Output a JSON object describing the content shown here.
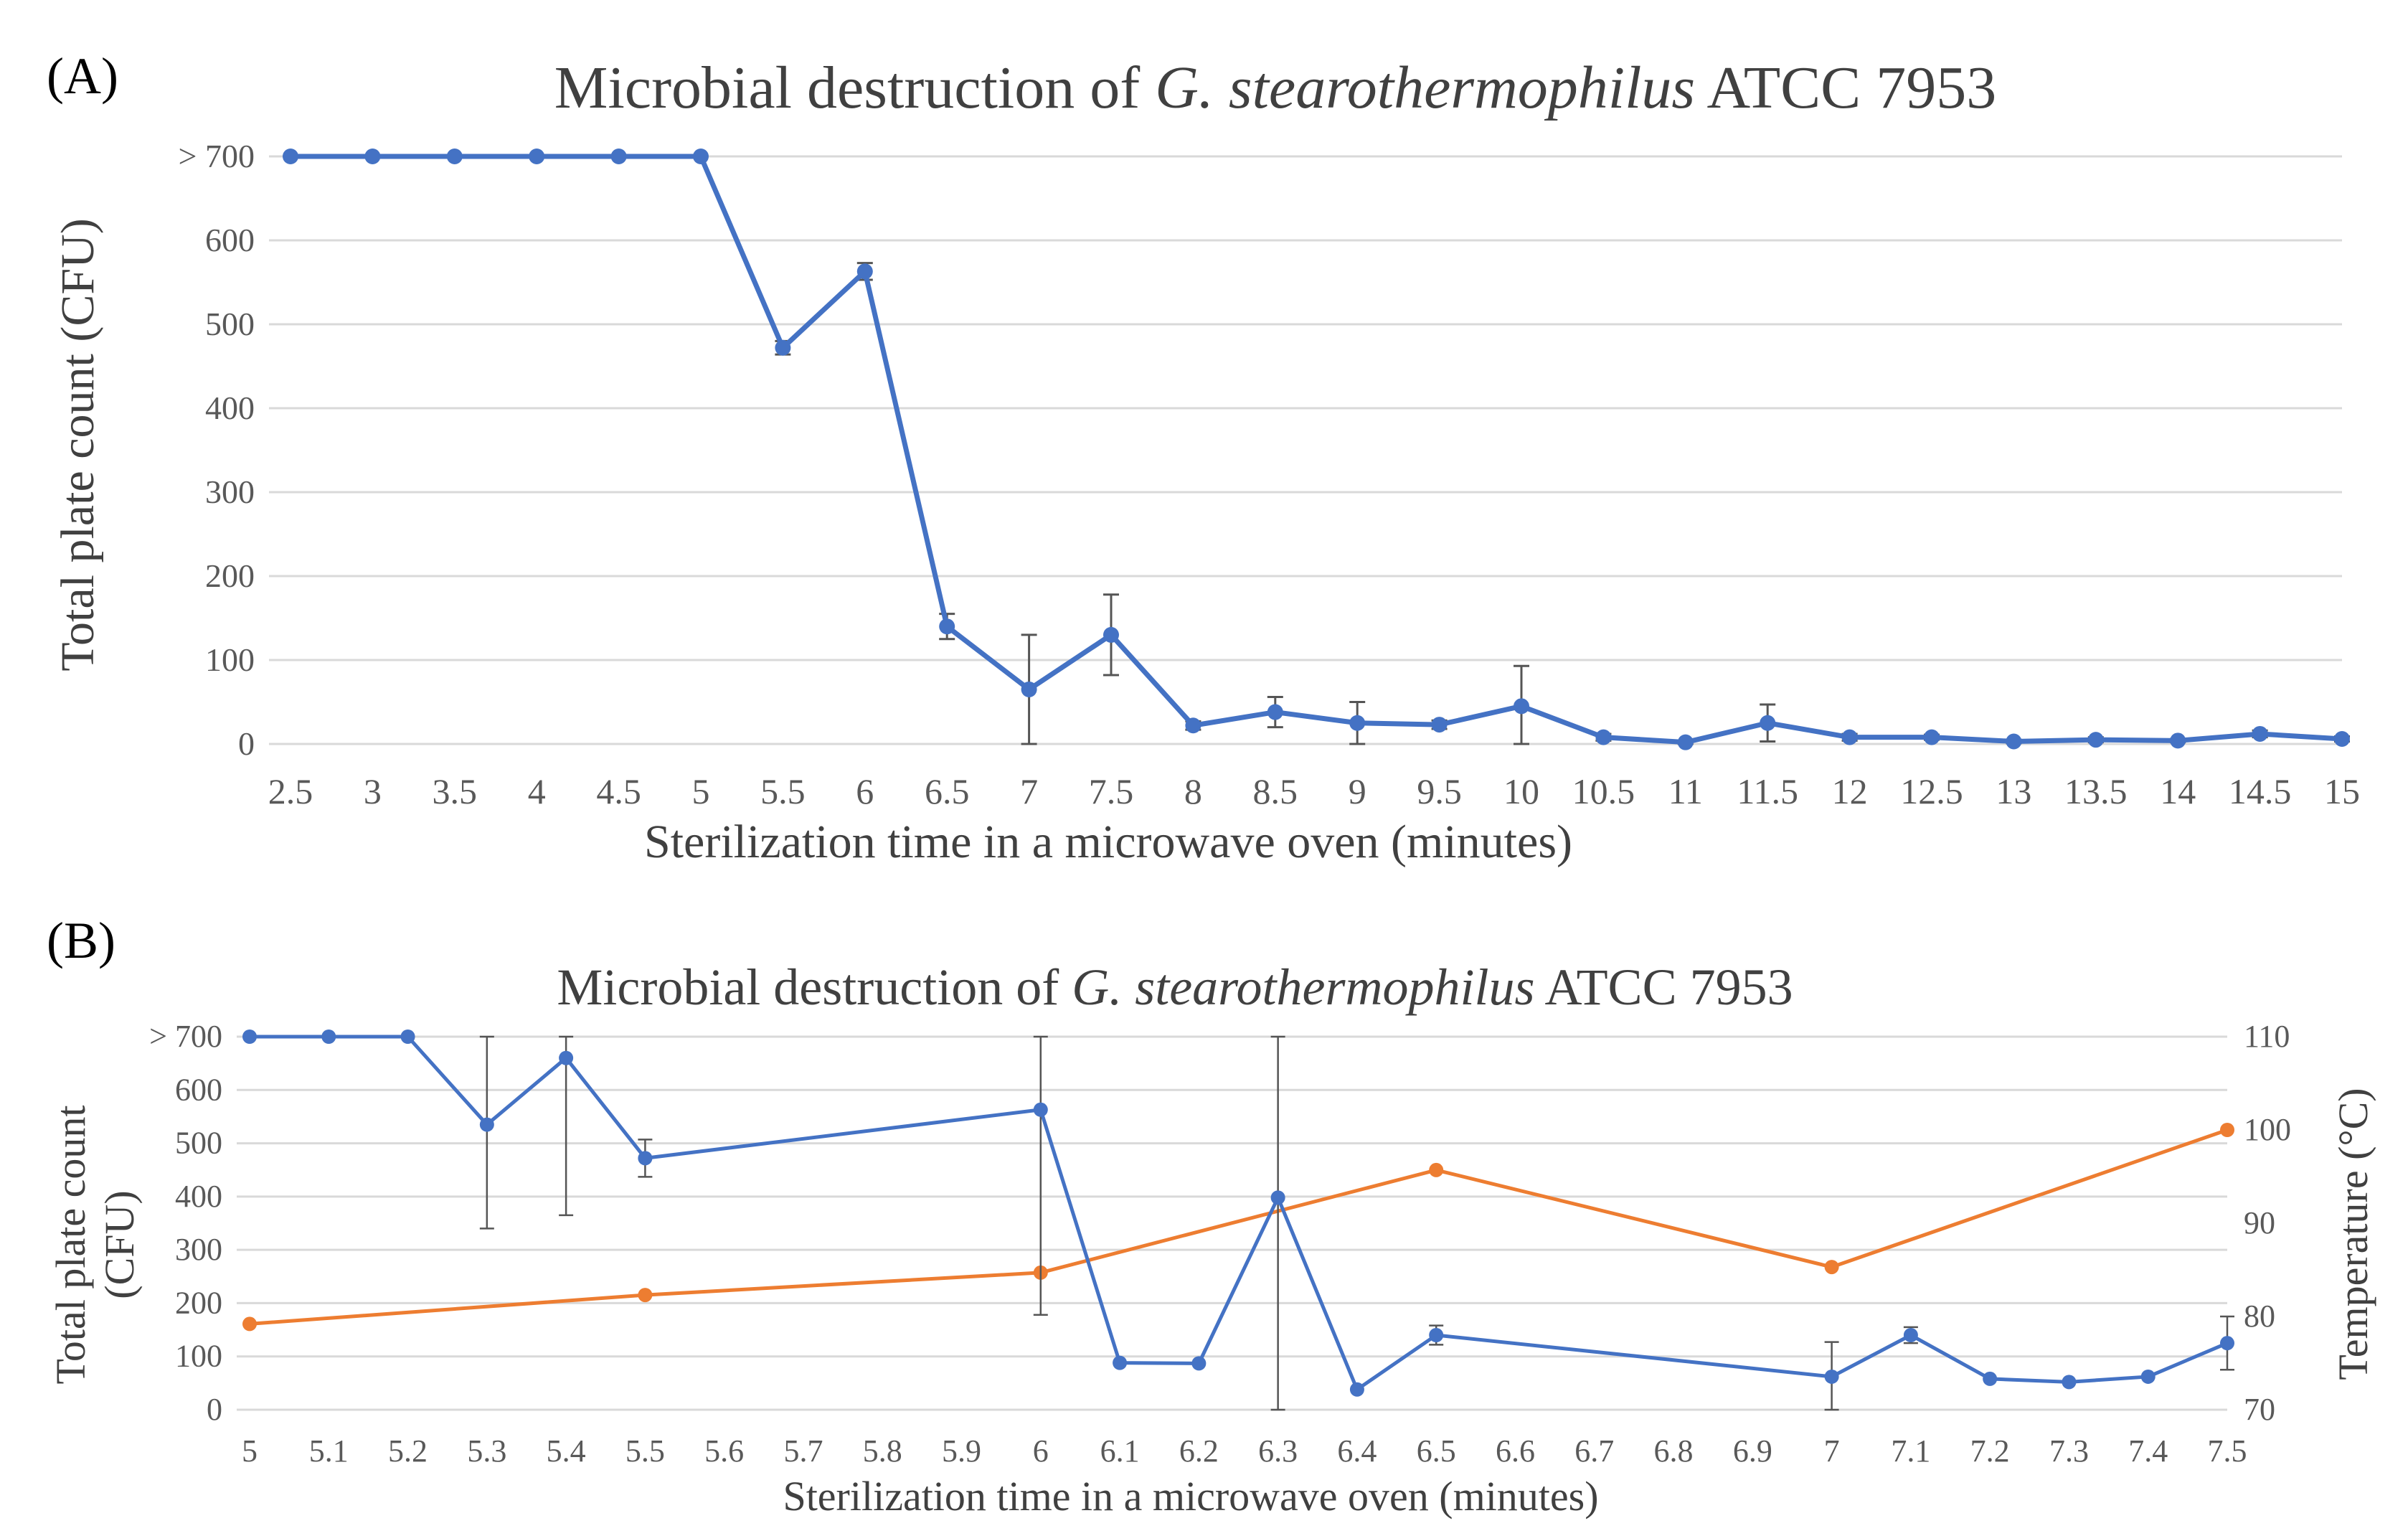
{
  "colors": {
    "count_series": "#4472c4",
    "temp_series": "#ed7d31",
    "grid": "#d9d9d9",
    "error_bar": "#555555",
    "tick_text": "#595959",
    "title_text": "#404040"
  },
  "chart_data": [
    {
      "panel_label": "(A)",
      "type": "line",
      "title_parts": [
        "Microbial destruction of ",
        "G. stearothermophilus",
        " ATCC 7953"
      ],
      "xlabel": "Sterilization time in a microwave oven (minutes)",
      "ylabel": "Total plate count (CFU)",
      "ylim": [
        0,
        700
      ],
      "yticks": [
        0,
        100,
        200,
        300,
        400,
        500,
        600,
        700
      ],
      "ytick_labels": [
        "0",
        "100",
        "200",
        "300",
        "400",
        "500",
        "600",
        "> 700"
      ],
      "categories": [
        "2.5",
        "3",
        "3.5",
        "4",
        "4.5",
        "5",
        "5.5",
        "6",
        "6.5",
        "7",
        "7.5",
        "8",
        "8.5",
        "9",
        "9.5",
        "10",
        "10.5",
        "11",
        "11.5",
        "12",
        "12.5",
        "13",
        "13.5",
        "14",
        "14.5",
        "15"
      ],
      "grid": true,
      "series": [
        {
          "name": "Total plate count",
          "axis": "left",
          "values": [
            700,
            700,
            700,
            700,
            700,
            700,
            472,
            563,
            140,
            65,
            130,
            22,
            38,
            25,
            23,
            45,
            8,
            2,
            25,
            8,
            8,
            3,
            5,
            4,
            12,
            6
          ],
          "errors": [
            0,
            0,
            0,
            0,
            0,
            0,
            8,
            10,
            15,
            65,
            48,
            5,
            18,
            25,
            5,
            48,
            4,
            2,
            22,
            4,
            3,
            2,
            3,
            2,
            4,
            3
          ]
        }
      ]
    },
    {
      "panel_label": "(B)",
      "type": "line",
      "title_parts": [
        "Microbial destruction of ",
        "G. stearothermophilus",
        " ATCC 7953"
      ],
      "xlabel": "Sterilization time in a microwave oven (minutes)",
      "ylabel_lines": [
        "Total plate count",
        "(CFU)"
      ],
      "ylabel_right": "Temperature (°C)",
      "ylim": [
        0,
        700
      ],
      "ylim_right": [
        70,
        110
      ],
      "yticks": [
        0,
        100,
        200,
        300,
        400,
        500,
        600,
        700
      ],
      "ytick_labels": [
        "0",
        "100",
        "200",
        "300",
        "400",
        "500",
        "600",
        "> 700"
      ],
      "yticks_right": [
        70,
        80,
        90,
        100,
        110
      ],
      "categories": [
        "5",
        "5.1",
        "5.2",
        "5.3",
        "5.4",
        "5.5",
        "5.6",
        "5.7",
        "5.8",
        "5.9",
        "6",
        "6.1",
        "6.2",
        "6.3",
        "6.4",
        "6.5",
        "6.6",
        "6.7",
        "6.8",
        "6.9",
        "7",
        "7.1",
        "7.2",
        "7.3",
        "7.4",
        "7.5"
      ],
      "grid": true,
      "series": [
        {
          "name": "Total plate count",
          "axis": "left",
          "x": [
            5,
            5.1,
            5.2,
            5.3,
            5.4,
            5.5,
            6,
            6.1,
            6.2,
            6.3,
            6.4,
            6.5,
            7,
            7.1,
            7.2,
            7.3,
            7.4,
            7.5
          ],
          "values": [
            700,
            700,
            700,
            535,
            660,
            472,
            563,
            88,
            87,
            398,
            38,
            140,
            62,
            140,
            58,
            52,
            62,
            125
          ],
          "errors": [
            0,
            0,
            0,
            195,
            295,
            35,
            385,
            0,
            0,
            400,
            0,
            18,
            65,
            15,
            0,
            0,
            0,
            50
          ]
        },
        {
          "name": "Temperature",
          "axis": "right",
          "x": [
            5,
            5.5,
            6,
            6.5,
            7,
            7.5
          ],
          "values": [
            79.2,
            82.3,
            84.7,
            95.7,
            85.3,
            100
          ]
        }
      ]
    }
  ]
}
